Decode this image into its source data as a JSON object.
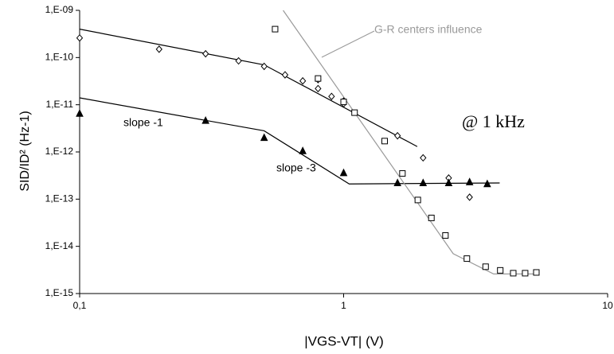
{
  "chart_data": {
    "type": "scatter",
    "xlabel": "|VGS-VT| (V)",
    "ylabel": "SID/ID² (Hz-1)",
    "xlog": true,
    "ylog": true,
    "xlim": [
      0.1,
      10
    ],
    "ylim": [
      1e-15,
      1e-09
    ],
    "xticks": [
      {
        "value": 0.1,
        "label": "0,1"
      },
      1,
      10
    ],
    "yticks": [
      {
        "value": 1e-09,
        "label": "1,E-09"
      },
      {
        "value": 1e-10,
        "label": "1,E-10"
      },
      {
        "value": 1e-11,
        "label": "1,E-11"
      },
      {
        "value": 1e-12,
        "label": "1,E-12"
      },
      {
        "value": 1e-13,
        "label": "1,E-13"
      },
      {
        "value": 1e-14,
        "label": "1,E-14"
      },
      {
        "value": 1e-15,
        "label": "1,E-15"
      }
    ],
    "series": [
      {
        "marker": "diamond",
        "color": "#000000",
        "x": [
          0.1,
          0.2,
          0.3,
          0.4,
          0.5,
          0.6,
          0.7,
          0.8,
          0.8,
          0.9,
          1.0,
          1.0,
          1.6,
          2.0,
          2.5,
          3.0
        ],
        "values": [
          2.6e-10,
          1.5e-10,
          1.2e-10,
          8.5e-11,
          6.5e-11,
          4.3e-11,
          3.2e-11,
          2.2e-11,
          3.4e-11,
          1.5e-11,
          1.2e-11,
          1.05e-11,
          2.2e-12,
          7.5e-13,
          2.8e-13,
          1.1e-13
        ]
      },
      {
        "marker": "square",
        "color": "#000000",
        "x": [
          0.55,
          0.8,
          1.0,
          1.1,
          1.43,
          1.67,
          1.91,
          2.15,
          2.43,
          2.93,
          3.45,
          3.92,
          4.39,
          4.87,
          5.37
        ],
        "values": [
          4e-10,
          3.6e-11,
          1.15e-11,
          6.8e-12,
          1.7e-12,
          3.5e-13,
          9.6e-14,
          4e-14,
          1.7e-14,
          5.5e-15,
          3.7e-15,
          3.1e-15,
          2.7e-15,
          2.7e-15,
          2.8e-15
        ]
      },
      {
        "marker": "triangle",
        "color": "#000000",
        "x": [
          0.1,
          0.3,
          0.5,
          0.7,
          1.0,
          1.6,
          2.0,
          2.5,
          3.0,
          3.5
        ],
        "values": [
          6.5e-12,
          4.6e-12,
          2e-12,
          1.05e-12,
          3.6e-13,
          2.2e-13,
          2.2e-13,
          2.2e-13,
          2.3e-13,
          2.1e-13
        ]
      }
    ],
    "fits": [
      {
        "color": "#000000",
        "x": [
          0.1,
          0.5,
          1.9
        ],
        "values": [
          4e-10,
          7e-11,
          1.3e-12
        ]
      },
      {
        "color": "#000000",
        "x": [
          0.1,
          0.5,
          1.05,
          3.9
        ],
        "values": [
          1.4e-11,
          2.8e-12,
          2.1e-13,
          2.2e-13
        ]
      },
      {
        "color": "#999999",
        "x": [
          0.59,
          2.6,
          3.7,
          5.4
        ],
        "values": [
          1e-09,
          7e-15,
          2.6e-15,
          2.6e-15
        ]
      }
    ],
    "annotations": [
      "G-R centers influence",
      "@ 1 kHz",
      "slope -1",
      "slope -3"
    ]
  }
}
